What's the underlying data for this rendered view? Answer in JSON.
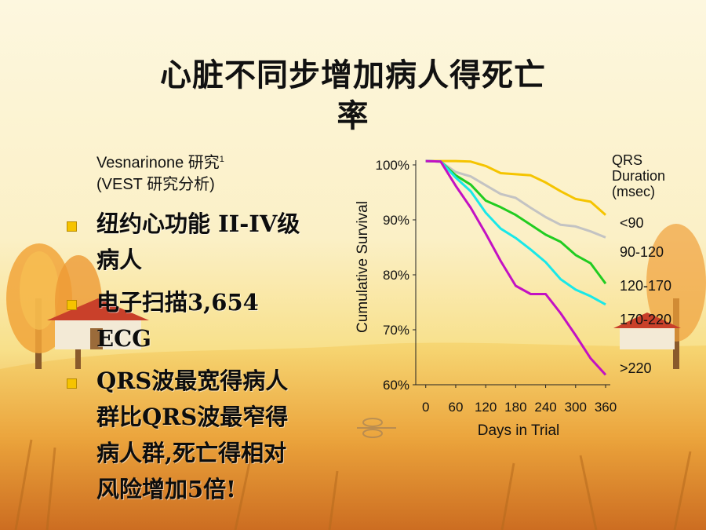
{
  "slide": {
    "title_line1": "心脏不同步增加病人得死亡",
    "title_line2": "率",
    "study_line1": "Vesnarinone 研究",
    "study_sup": "1",
    "study_line2": "(VEST 研究分析)",
    "bullets": [
      {
        "lines": [
          "纽约心功能 II-IV级",
          "病人"
        ]
      },
      {
        "lines": [
          "电子扫描3,654",
          "ECG"
        ]
      },
      {
        "lines": [
          "QRS波最宽得病人",
          "群比QRS波最窄得",
          "病人群,死亡得相对",
          "风险增加5倍!"
        ]
      }
    ]
  },
  "chart_data": {
    "type": "line",
    "xlabel": "Days in Trial",
    "ylabel": "Cumulative Survival",
    "xlim": [
      -20,
      360
    ],
    "ylim": [
      60,
      100
    ],
    "x_ticks": [
      0,
      60,
      120,
      180,
      240,
      300,
      360
    ],
    "y_ticks": [
      100,
      90,
      80,
      70,
      60
    ],
    "y_tick_labels": [
      "100%",
      "90%",
      "80%",
      "70%",
      "60%"
    ],
    "legend_title": [
      "QRS",
      "Duration",
      "(msec)"
    ],
    "legend_placement": "right",
    "series": [
      {
        "name": "<90",
        "color": "#f5c400",
        "x": [
          0,
          30,
          60,
          90,
          120,
          150,
          180,
          210,
          240,
          270,
          300,
          330,
          360
        ],
        "y": [
          100.7,
          100.7,
          100.7,
          100.6,
          99.8,
          98.5,
          98.3,
          98.1,
          96.8,
          95.2,
          93.8,
          93.3,
          90.9
        ]
      },
      {
        "name": "90-120",
        "color": "#c3c3c3",
        "x": [
          0,
          30,
          60,
          90,
          120,
          150,
          180,
          210,
          240,
          270,
          300,
          330,
          360
        ],
        "y": [
          100.7,
          100.6,
          98.7,
          97.9,
          96.3,
          94.7,
          94.0,
          92.2,
          90.5,
          89.1,
          88.8,
          87.9,
          86.8
        ]
      },
      {
        "name": "120-170",
        "color": "#21cc21",
        "x": [
          0,
          30,
          60,
          90,
          120,
          150,
          180,
          210,
          240,
          270,
          300,
          330,
          360
        ],
        "y": [
          100.7,
          100.6,
          98.1,
          96.4,
          93.5,
          92.3,
          90.9,
          89.1,
          87.3,
          86.0,
          83.6,
          82.1,
          78.4
        ]
      },
      {
        "name": "170-220",
        "color": "#19e8e8",
        "x": [
          0,
          30,
          60,
          90,
          120,
          150,
          180,
          210,
          240,
          270,
          300,
          330,
          360
        ],
        "y": [
          100.7,
          100.6,
          97.7,
          95.2,
          91.3,
          88.4,
          86.7,
          84.6,
          82.3,
          79.2,
          77.3,
          76.1,
          74.6
        ]
      },
      {
        "name": ">220",
        "color": "#c311c3",
        "x": [
          0,
          30,
          60,
          90,
          120,
          150,
          180,
          210,
          240,
          270,
          300,
          330,
          360
        ],
        "y": [
          100.7,
          100.6,
          96.2,
          92.2,
          87.5,
          82.5,
          78.0,
          76.5,
          76.5,
          73.0,
          69.0,
          64.8,
          61.8
        ]
      }
    ]
  }
}
